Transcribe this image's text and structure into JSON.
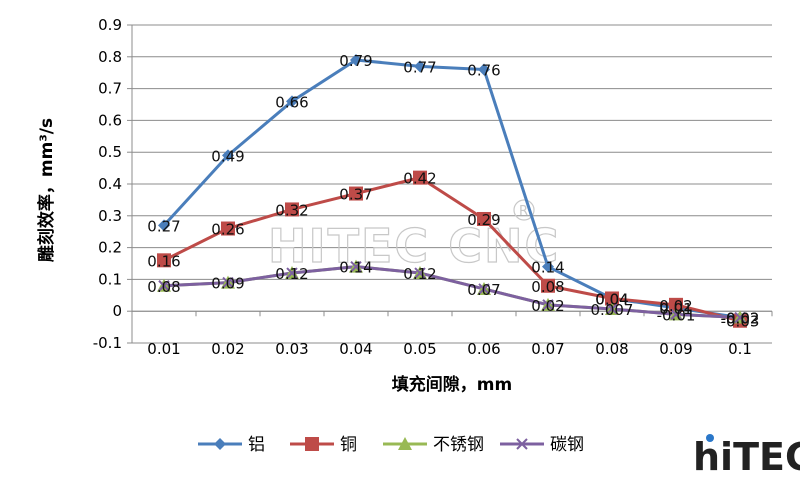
{
  "chart_data": {
    "type": "line",
    "title": "",
    "xlabel": "填充间隙，mm",
    "ylabel": "雕刻效率，mm³/s",
    "categories": [
      "0.01",
      "0.02",
      "0.03",
      "0.04",
      "0.05",
      "0.06",
      "0.07",
      "0.08",
      "0.09",
      "0.1"
    ],
    "ylim": [
      -0.1,
      0.9
    ],
    "yticks": [
      "-0.1",
      "0",
      "0.1",
      "0.2",
      "0.3",
      "0.4",
      "0.5",
      "0.6",
      "0.7",
      "0.8",
      "0.9"
    ],
    "grid": "horizontal",
    "legend_position": "bottom",
    "series": [
      {
        "name": "铝",
        "color": "#4a7ebb",
        "marker": "diamond",
        "values": [
          0.27,
          0.49,
          0.66,
          0.79,
          0.77,
          0.76,
          0.14,
          0.04,
          0.01,
          -0.02
        ],
        "labels": [
          "0.27",
          "0.49",
          "0.66",
          "0.79",
          "0.77",
          "0.76",
          "0.14",
          "0.04",
          "0.01",
          "-0.02"
        ]
      },
      {
        "name": "铜",
        "color": "#be4b48",
        "marker": "square",
        "values": [
          0.16,
          0.26,
          0.32,
          0.37,
          0.42,
          0.29,
          0.08,
          0.04,
          0.02,
          -0.03
        ],
        "labels": [
          "0.16",
          "0.26",
          "0.32",
          "0.37",
          "0.42",
          "0.29",
          "0.08",
          "0.04",
          "0.02",
          "-0.03"
        ]
      },
      {
        "name": "不锈钢",
        "color": "#98b954",
        "marker": "triangle",
        "values": [
          0.08,
          0.09,
          0.12,
          0.14,
          0.12,
          0.07,
          0.02,
          0.007,
          -0.01,
          -0.02
        ],
        "labels": [
          "0.08",
          "0.09",
          "0.12",
          "0.14",
          "0.12",
          "0.07",
          "0.02",
          "0.007",
          "-0.01",
          "-0.02"
        ]
      },
      {
        "name": "碳钢",
        "color": "#7d60a0",
        "marker": "x",
        "values": [
          0.08,
          0.09,
          0.12,
          0.14,
          0.12,
          0.07,
          0.02,
          0.007,
          -0.01,
          -0.02
        ],
        "labels": []
      }
    ]
  },
  "watermark": "HITEC CNC",
  "logo": {
    "text": "hiTEC"
  }
}
